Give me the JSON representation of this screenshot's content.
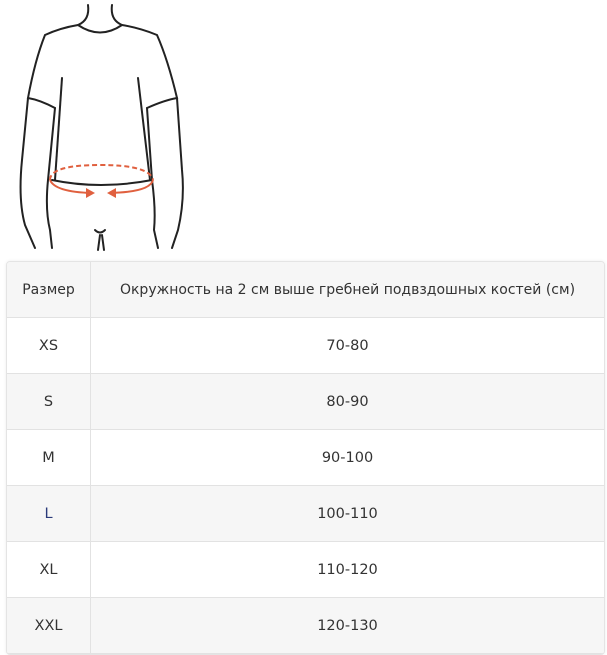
{
  "header": {
    "size": "Размер",
    "measure": "Окружность на 2 см выше гребней подвздошных костей (см)"
  },
  "rows": [
    {
      "size": "XS",
      "range": "70-80"
    },
    {
      "size": "S",
      "range": "80-90"
    },
    {
      "size": "M",
      "range": "90-100"
    },
    {
      "size": "L",
      "range": "100-110"
    },
    {
      "size": "XL",
      "range": "110-120"
    },
    {
      "size": "XXL",
      "range": "120-130"
    }
  ],
  "colors": {
    "arrow": "#e0603f",
    "outline": "#222222"
  }
}
